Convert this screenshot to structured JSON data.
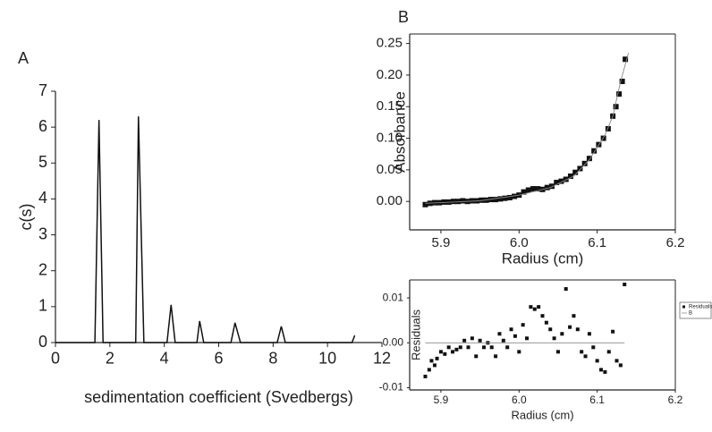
{
  "chart_data": [
    {
      "type": "line",
      "panel_label": "A",
      "x_label": "sedimentation coefficient (Svedbergs)",
      "y_label": "c(s)",
      "xlim": [
        0,
        12
      ],
      "ylim": [
        0,
        7
      ],
      "xticks": [
        0,
        2,
        4,
        6,
        8,
        10,
        12
      ],
      "yticks": [
        0,
        1,
        2,
        3,
        4,
        5,
        6,
        7
      ],
      "series": [
        {
          "type": "line",
          "color": "#111111",
          "x": [
            0,
            1.45,
            1.6,
            1.75,
            2.95,
            3.05,
            3.25,
            4.1,
            4.25,
            4.4,
            5.2,
            5.3,
            5.45,
            6.45,
            6.6,
            6.8,
            8.15,
            8.3,
            8.45,
            10.9,
            11.0
          ],
          "values": [
            0,
            0,
            6.2,
            0,
            0,
            6.3,
            0,
            0,
            1.05,
            0,
            0,
            0.6,
            0,
            0,
            0.55,
            0,
            0,
            0.45,
            0,
            0,
            0.2
          ]
        }
      ]
    },
    {
      "type": "scatter",
      "panel_label": "B",
      "x_label": "Radius (cm)",
      "y_label": "Absorbance",
      "xlim": [
        5.86,
        6.2
      ],
      "ylim": [
        -0.045,
        0.265
      ],
      "xticks": [
        5.9,
        {
          "value": 6.0,
          "label": "6.0"
        },
        6.1,
        6.2
      ],
      "yticks": [
        {
          "value": 0,
          "label": "0.00"
        },
        {
          "value": 0.05,
          "label": "0.05"
        },
        {
          "value": 0.1,
          "label": "0.10"
        },
        {
          "value": 0.15,
          "label": "0.15"
        },
        {
          "value": 0.2,
          "label": "0.20"
        },
        {
          "value": 0.25,
          "label": "0.25"
        }
      ],
      "series": [
        {
          "type": "scatter",
          "color": "#111111",
          "x": [
            5.88,
            5.886,
            5.892,
            5.898,
            5.904,
            5.91,
            5.916,
            5.922,
            5.928,
            5.934,
            5.94,
            5.946,
            5.952,
            5.958,
            5.964,
            5.97,
            5.976,
            5.982,
            5.988,
            5.994,
            6.0,
            6.006,
            6.012,
            6.018,
            6.024,
            6.03,
            6.036,
            6.042,
            6.048,
            6.054,
            6.06,
            6.066,
            6.072,
            6.078,
            6.084,
            6.09,
            6.096,
            6.102,
            6.108,
            6.114,
            6.12,
            6.124,
            6.128,
            6.132,
            6.136
          ],
          "values": [
            -0.005,
            -0.003,
            -0.002,
            -0.002,
            -0.001,
            -0.001,
            0.0,
            0.0,
            0.001,
            0.0,
            0.001,
            0.001,
            0.002,
            0.002,
            0.003,
            0.003,
            0.004,
            0.005,
            0.006,
            0.008,
            0.01,
            0.015,
            0.018,
            0.02,
            0.02,
            0.019,
            0.022,
            0.024,
            0.03,
            0.032,
            0.035,
            0.04,
            0.046,
            0.052,
            0.06,
            0.068,
            0.08,
            0.09,
            0.1,
            0.115,
            0.135,
            0.15,
            0.17,
            0.19,
            0.225
          ]
        },
        {
          "type": "line",
          "color": "#888888",
          "x": [
            5.88,
            5.95,
            6.0,
            6.04,
            6.07,
            6.09,
            6.11,
            6.12,
            6.13,
            6.14
          ],
          "values": [
            -0.003,
            0.001,
            0.01,
            0.022,
            0.04,
            0.066,
            0.105,
            0.135,
            0.19,
            0.235
          ]
        }
      ]
    },
    {
      "type": "scatter",
      "x_label": "Radius (cm)",
      "y_label": "Residuals",
      "xlim": [
        5.86,
        6.2
      ],
      "ylim": [
        -0.0105,
        0.014
      ],
      "xticks": [
        5.9,
        {
          "value": 6.0,
          "label": "6.0"
        },
        6.1,
        6.2
      ],
      "yticks": [
        {
          "value": -0.01,
          "label": "-0.01"
        },
        {
          "value": 0,
          "label": "0.00"
        },
        {
          "value": 0.01,
          "label": "0.01"
        }
      ],
      "series": [
        {
          "name": "Residuals",
          "type": "scatter",
          "color": "#111111",
          "x": [
            5.88,
            5.885,
            5.888,
            5.892,
            5.895,
            5.9,
            5.905,
            5.91,
            5.915,
            5.92,
            5.925,
            5.93,
            5.935,
            5.94,
            5.945,
            5.95,
            5.955,
            5.96,
            5.965,
            5.97,
            5.975,
            5.98,
            5.985,
            5.99,
            5.995,
            6.0,
            6.005,
            6.01,
            6.015,
            6.02,
            6.025,
            6.03,
            6.035,
            6.04,
            6.045,
            6.05,
            6.055,
            6.06,
            6.065,
            6.07,
            6.075,
            6.08,
            6.085,
            6.09,
            6.095,
            6.1,
            6.105,
            6.11,
            6.115,
            6.12,
            6.125,
            6.13,
            6.135
          ],
          "values": [
            -0.0075,
            -0.006,
            -0.004,
            -0.005,
            -0.0035,
            -0.002,
            -0.0025,
            -0.001,
            -0.002,
            -0.0015,
            -0.001,
            0.0005,
            -0.001,
            0.001,
            -0.003,
            0.0005,
            -0.001,
            0.0,
            -0.001,
            -0.003,
            0.002,
            0.0005,
            -0.001,
            0.003,
            0.0015,
            -0.002,
            0.004,
            0.001,
            0.008,
            0.0075,
            0.008,
            0.006,
            0.0045,
            0.003,
            0.001,
            -0.002,
            0.002,
            0.012,
            0.0035,
            0.006,
            0.003,
            -0.002,
            -0.003,
            0.002,
            -0.001,
            -0.004,
            -0.006,
            -0.0065,
            -0.002,
            0.0025,
            -0.004,
            -0.005,
            0.013
          ]
        },
        {
          "name": "B",
          "type": "line",
          "color": "#888888",
          "x": [
            5.88,
            6.135
          ],
          "values": [
            0,
            0
          ]
        }
      ]
    }
  ]
}
